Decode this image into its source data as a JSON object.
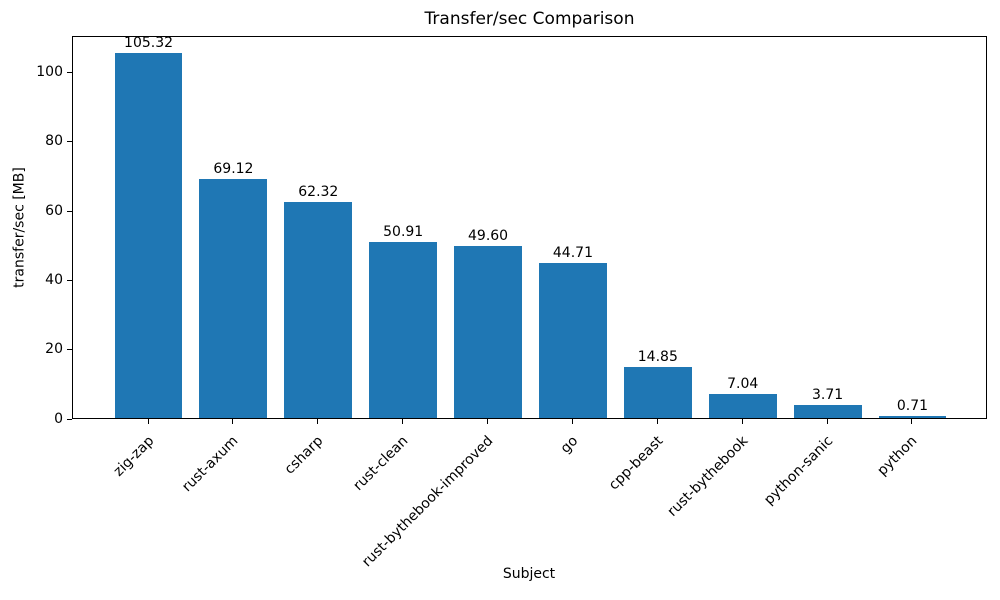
{
  "chart_data": {
    "type": "bar",
    "title": "Transfer/sec Comparison",
    "xlabel": "Subject",
    "ylabel": "transfer/sec [MB]",
    "categories": [
      "zig-zap",
      "rust-axum",
      "csharp",
      "rust-clean",
      "rust-bythebook-improved",
      "go",
      "cpp-beast",
      "rust-bythebook",
      "python-sanic",
      "python"
    ],
    "values": [
      105.32,
      69.12,
      62.32,
      50.91,
      49.6,
      44.71,
      14.85,
      7.04,
      3.71,
      0.71
    ],
    "value_labels": [
      "105.32",
      "69.12",
      "62.32",
      "50.91",
      "49.60",
      "44.71",
      "14.85",
      "7.04",
      "3.71",
      "0.71"
    ],
    "yticks": [
      0,
      20,
      40,
      60,
      80,
      100
    ],
    "ylim": [
      0,
      110.59
    ],
    "bar_color": "#1f77b4",
    "axis_color": "#000000",
    "background_color": "#ffffff",
    "grid": false,
    "legend_position": "none"
  }
}
